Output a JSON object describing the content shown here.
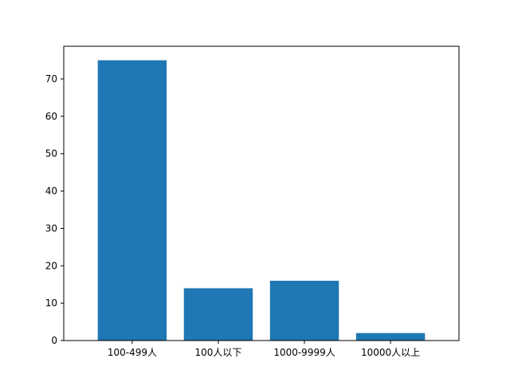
{
  "chart_data": {
    "type": "bar",
    "categories": [
      "100-499人",
      "100人以下",
      "1000-9999人",
      "10000人以上"
    ],
    "values": [
      75,
      14,
      16,
      2
    ],
    "title": "",
    "xlabel": "",
    "ylabel": "",
    "ylim": [
      0,
      78.75
    ],
    "yticks": [
      0,
      10,
      20,
      30,
      40,
      50,
      60,
      70
    ],
    "grid": false,
    "legend": "none",
    "colors": {
      "bar": "#1f77b4",
      "axis": "#000000",
      "background": "#ffffff"
    }
  }
}
